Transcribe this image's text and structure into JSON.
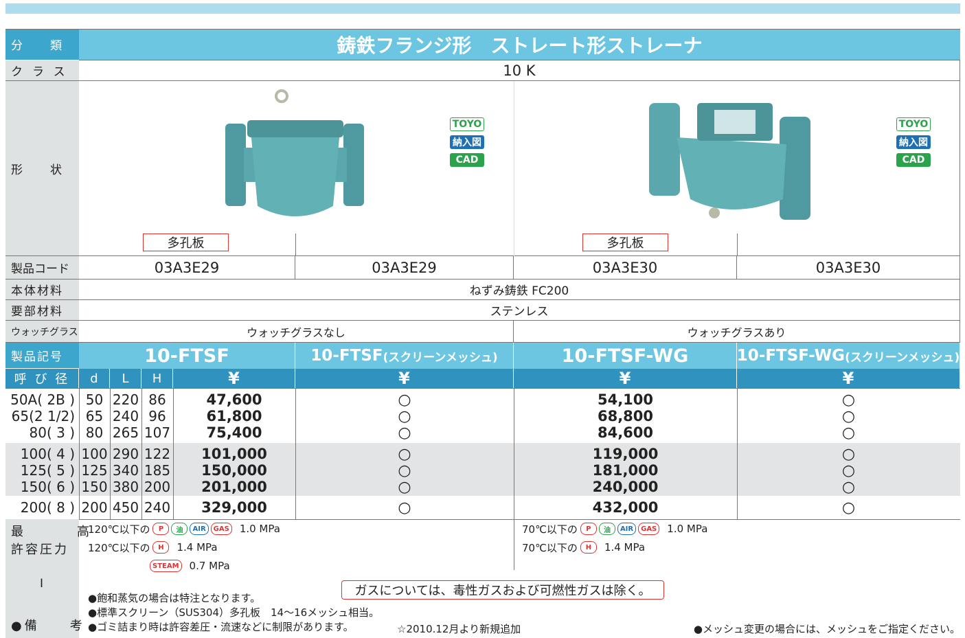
{
  "header": {
    "category_label": "分　　類",
    "category": "鋳鉄フランジ形　ストレート形ストレーナ",
    "class_label": "クラス",
    "class": "10 K",
    "shape_label": "形　　状"
  },
  "products": [
    {
      "badges": [
        "TOYO",
        "納入図",
        "CAD"
      ],
      "plate": "多孔板"
    },
    {
      "badges": [
        "TOYO",
        "納入図",
        "CAD"
      ],
      "plate": "多孔板"
    }
  ],
  "code_label": "製品コード",
  "codes": [
    "03A3E29",
    "03A3E29",
    "03A3E30",
    "03A3E30"
  ],
  "body_material_label": "本体材料",
  "body_material": "ねずみ鋳鉄 FC200",
  "part_material_label": "要部材料",
  "part_material": "ステンレス",
  "watch_label": "ウォッチグラス",
  "watch": [
    "ウォッチグラスなし",
    "ウォッチグラスあり"
  ],
  "model_label": "製品記号",
  "models": [
    {
      "name": "10-FTSF"
    },
    {
      "name": "10-FTSF",
      "suffix": "(スクリーンメッシュ)"
    },
    {
      "name": "10-FTSF-WG"
    },
    {
      "name": "10-FTSF-WG",
      "suffix": "(スクリーンメッシュ)"
    }
  ],
  "table": {
    "columns": [
      "呼 び 径",
      "d",
      "L",
      "H",
      "¥",
      "¥",
      "¥",
      "¥"
    ],
    "rows": [
      [
        "50A( 2B )",
        "50",
        "220",
        "86",
        "47,600",
        "○",
        "54,100",
        "○"
      ],
      [
        "65(2 1/2)",
        "65",
        "240",
        "96",
        "61,800",
        "○",
        "68,800",
        "○"
      ],
      [
        "80( 3 )",
        "80",
        "265",
        "107",
        "75,400",
        "○",
        "84,600",
        "○"
      ],
      [
        "100( 4 )",
        "100",
        "290",
        "122",
        "101,000",
        "○",
        "119,000",
        "○"
      ],
      [
        "125( 5 )",
        "125",
        "340",
        "185",
        "150,000",
        "○",
        "181,000",
        "○"
      ],
      [
        "150( 6 )",
        "150",
        "380",
        "200",
        "201,000",
        "○",
        "240,000",
        "○"
      ],
      [
        "200( 8 )",
        "200",
        "450",
        "240",
        "329,000",
        "○",
        "432,000",
        "○"
      ]
    ]
  },
  "pressure": {
    "label1": "最　　高",
    "label2": "許容圧力",
    "left": [
      {
        "temp": "120℃以下の",
        "icons": [
          "P",
          "油",
          "AIR",
          "GAS"
        ],
        "value": "1.0 MPa"
      },
      {
        "temp": "120℃以下の",
        "icons": [
          "H"
        ],
        "value": "1.4 MPa"
      },
      {
        "icons": [
          "STEAM"
        ],
        "value": "0.7 MPa"
      }
    ],
    "right": [
      {
        "temp": "70℃以下の",
        "icons": [
          "P",
          "油",
          "AIR",
          "GAS"
        ],
        "value": "1.0 MPa"
      },
      {
        "temp": "70℃以下の",
        "icons": [
          "H"
        ],
        "value": "1.4 MPa"
      }
    ]
  },
  "remarks": {
    "mark": "I",
    "label": "●備　　考",
    "notes": [
      "●飽和蒸気の場合は特注となります。",
      "●標準スクリーン（SUS304）多孔板　14〜16メッシュ相当。",
      "●ゴミ詰まり時は許容差圧・流速などに制限があります。"
    ],
    "gas_note": "ガスについては、毒性ガスおよび可燃性ガスは除く。",
    "new_note": "☆2010.12月より新規追加",
    "mesh_note": "●メッシュ変更の場合には、メッシュをご指定ください。"
  }
}
